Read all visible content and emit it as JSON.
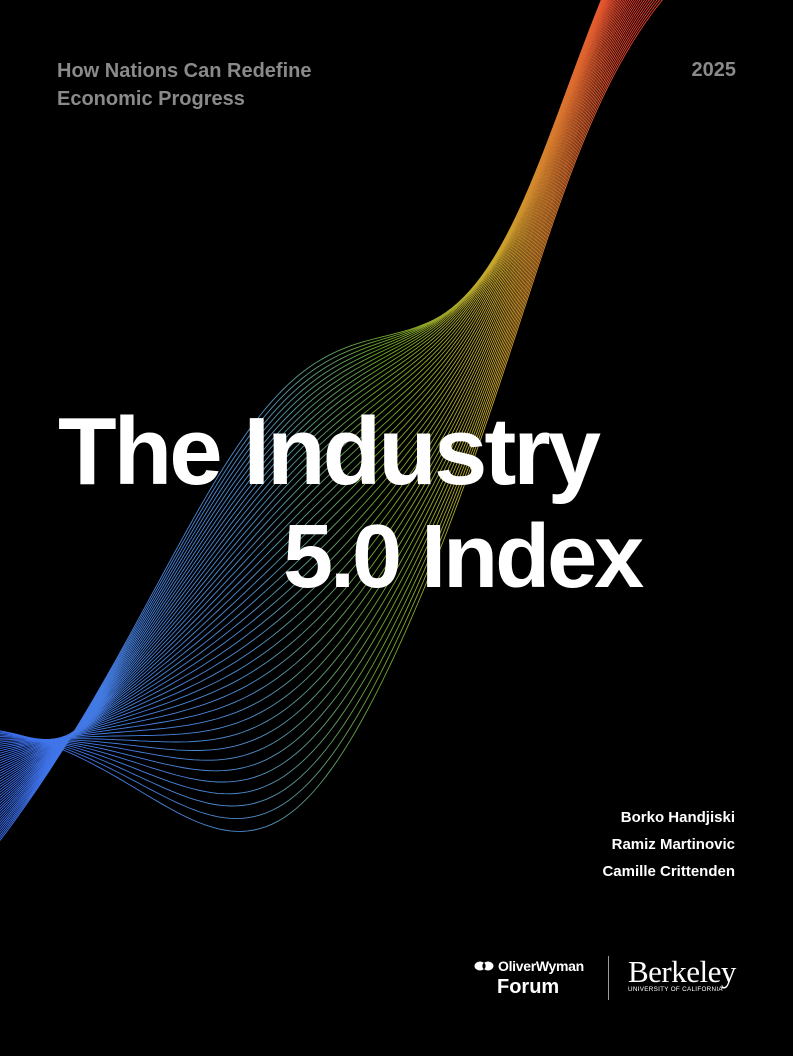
{
  "header": {
    "subtitle_line1": "How Nations Can Redefine",
    "subtitle_line2": "Economic Progress",
    "year": "2025"
  },
  "title": {
    "line1": "The Industry",
    "line2": "5.0 Index"
  },
  "authors": [
    "Borko Handjiski",
    "Ramiz Martinovic",
    "Camille Crittenden"
  ],
  "logos": {
    "oliver_wyman_line1": "OliverWyman",
    "oliver_wyman_line2": "Forum",
    "berkeley_main": "Berkeley",
    "berkeley_sub": "UNIVERSITY OF CALIFORNIA"
  },
  "colors": {
    "background": "#000000",
    "subtitle_gray": "#8a8a8a",
    "wave_blue": "#3b6cf2",
    "wave_green": "#6aa628",
    "wave_yellow": "#c8a82c",
    "wave_red": "#ee3b30",
    "wave_orange": "#f57f20"
  }
}
